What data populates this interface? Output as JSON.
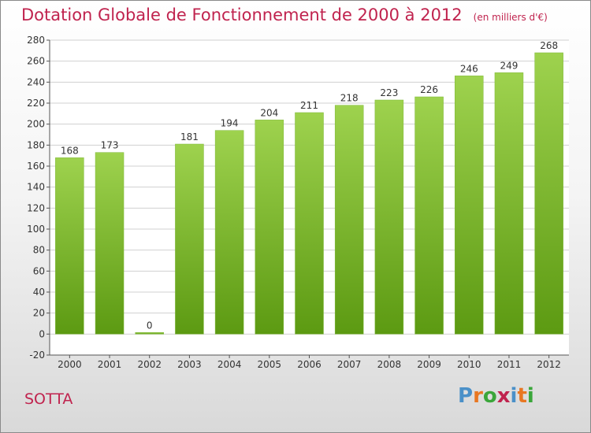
{
  "header": {
    "title": "Dotation Globale de Fonctionnement de 2000 à 2012",
    "unit": "(en milliers d'€)"
  },
  "footer": {
    "city": "SOTTA",
    "logo": [
      "P",
      "r",
      "o",
      "x",
      "i",
      "t",
      "i"
    ],
    "logo_colors": [
      "#4a90c8",
      "#e87722",
      "#3aa63a",
      "#c0234e",
      "#4a90c8",
      "#e87722",
      "#3aa63a"
    ]
  },
  "chart_data": {
    "type": "bar",
    "title": "Dotation Globale de Fonctionnement de 2000 à 2012",
    "subtitle": "(en milliers d'€)",
    "categories": [
      "2000",
      "2001",
      "2002",
      "2003",
      "2004",
      "2005",
      "2006",
      "2007",
      "2008",
      "2009",
      "2010",
      "2011",
      "2012"
    ],
    "values": [
      168,
      173,
      0,
      181,
      194,
      204,
      211,
      218,
      223,
      226,
      246,
      249,
      268
    ],
    "data_labels": [
      "168",
      "173",
      "0",
      "181",
      "194",
      "204",
      "211",
      "218",
      "223",
      "226",
      "246",
      "249",
      "268"
    ],
    "yticks": [
      "-20",
      "0",
      "20",
      "40",
      "60",
      "80",
      "100",
      "120",
      "140",
      "160",
      "180",
      "200",
      "220",
      "240",
      "260",
      "280"
    ],
    "ylim": [
      -20,
      280
    ],
    "grid": true,
    "bar_color_top": "#9ed24e",
    "bar_color_bottom": "#5c9a12"
  }
}
